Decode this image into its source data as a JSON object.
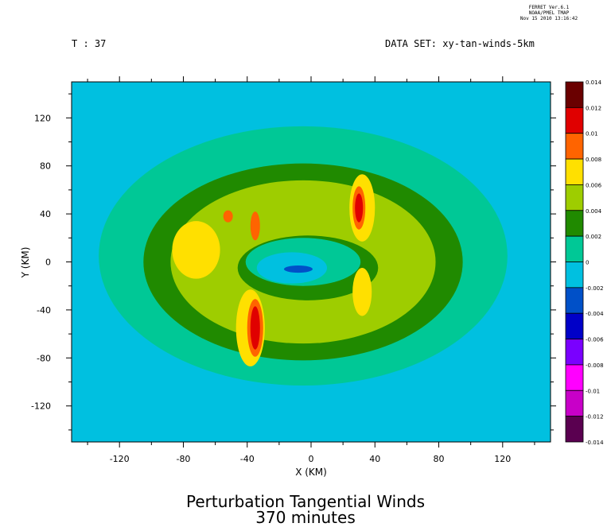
{
  "stamp": {
    "line1": "FERRET Ver.6.1",
    "line2": "NOAA/PMEL TMAP",
    "line3": "Nov 15 2010 13:16:42"
  },
  "header": {
    "time_label": "T : 37",
    "dataset_label": "DATA SET: xy-tan-winds-5km"
  },
  "title": {
    "line1": "Perturbation Tangential Winds",
    "line2": "370 minutes"
  },
  "chart_data": {
    "type": "heatmap",
    "xlabel": "X (KM)",
    "ylabel": "Y (KM)",
    "xlim": [
      -150,
      150
    ],
    "ylim": [
      -150,
      150
    ],
    "xticks": [
      -120,
      -80,
      -40,
      0,
      40,
      80,
      120
    ],
    "yticks": [
      120,
      80,
      40,
      0,
      -40,
      -80,
      -120
    ],
    "xtick_labels": [
      "-120",
      "-80",
      "-40",
      "0",
      "40",
      "80",
      "120"
    ],
    "ytick_labels": [
      "120",
      "80",
      "40",
      "0",
      "-40",
      "-80",
      "-120"
    ],
    "background_level_color": "#00c0e0",
    "colorbar": {
      "levels": [
        0.014,
        0.012,
        0.01,
        0.008,
        0.006,
        0.004,
        0.002,
        0,
        -0.002,
        -0.004,
        -0.006,
        -0.008,
        -0.01,
        -0.012,
        -0.014
      ],
      "labels": [
        "0.014",
        "0.012",
        "0.01",
        "0.008",
        "0.006",
        "0.004",
        "0.002",
        "0",
        "-0.002",
        "-0.004",
        "-0.006",
        "-0.008",
        "-0.01",
        "-0.012",
        "-0.014"
      ],
      "colors": [
        "#6a0000",
        "#e00000",
        "#ff6400",
        "#ffe000",
        "#9ecd00",
        "#208a00",
        "#00c896",
        "#00c0e0",
        "#0050c8",
        "#0000c8",
        "#7a00ff",
        "#ff00ff",
        "#c800c8",
        "#5a0050"
      ]
    },
    "regions": [
      {
        "level_range": [
          0,
          0.002
        ],
        "color": "#00c896",
        "cx": -5,
        "cy": 5,
        "rx": 128,
        "ry": 108
      },
      {
        "level_range": [
          0.002,
          0.004
        ],
        "color": "#208a00",
        "cx": -5,
        "cy": 0,
        "rx": 100,
        "ry": 82
      },
      {
        "level_range": [
          0.004,
          0.006
        ],
        "color": "#9ecd00",
        "cx": -5,
        "cy": 0,
        "rx": 83,
        "ry": 68
      },
      {
        "level_range": [
          0.002,
          0.004
        ],
        "color": "#208a00",
        "cx": -2,
        "cy": -5,
        "rx": 44,
        "ry": 27
      },
      {
        "level_range": [
          0,
          0.002
        ],
        "color": "#00c896",
        "cx": -5,
        "cy": 0,
        "rx": 36,
        "ry": 20
      },
      {
        "level_range": [
          -0.002,
          0
        ],
        "color": "#00c0e0",
        "cx": -12,
        "cy": -5,
        "rx": 22,
        "ry": 13
      },
      {
        "level_range": [
          -0.004,
          -0.002
        ],
        "color": "#0050c8",
        "cx": -8,
        "cy": -6,
        "rx": 9,
        "ry": 3
      },
      {
        "level_range": [
          0.006,
          0.008
        ],
        "color": "#ffe000",
        "cx": -72,
        "cy": 10,
        "rx": 15,
        "ry": 24
      },
      {
        "level_range": [
          0.006,
          0.008
        ],
        "color": "#ffe000",
        "cx": -38,
        "cy": -55,
        "rx": 9,
        "ry": 32
      },
      {
        "level_range": [
          0.006,
          0.008
        ],
        "color": "#ffe000",
        "cx": 32,
        "cy": 45,
        "rx": 8,
        "ry": 28
      },
      {
        "level_range": [
          0.006,
          0.008
        ],
        "color": "#ffe000",
        "cx": 32,
        "cy": -25,
        "rx": 6,
        "ry": 20
      },
      {
        "level_range": [
          0.008,
          0.01
        ],
        "color": "#ff6400",
        "cx": -35,
        "cy": -55,
        "rx": 5,
        "ry": 24
      },
      {
        "level_range": [
          0.008,
          0.01
        ],
        "color": "#ff6400",
        "cx": 30,
        "cy": 45,
        "rx": 4,
        "ry": 18
      },
      {
        "level_range": [
          0.008,
          0.01
        ],
        "color": "#ff6400",
        "cx": -35,
        "cy": 30,
        "rx": 3,
        "ry": 12
      },
      {
        "level_range": [
          0.008,
          0.01
        ],
        "color": "#ff6400",
        "cx": -52,
        "cy": 38,
        "rx": 3,
        "ry": 5
      },
      {
        "level_range": [
          0.01,
          0.012
        ],
        "color": "#e00000",
        "cx": -35,
        "cy": -55,
        "rx": 3,
        "ry": 18
      },
      {
        "level_range": [
          0.01,
          0.012
        ],
        "color": "#e00000",
        "cx": 30,
        "cy": 45,
        "rx": 2.5,
        "ry": 12
      }
    ]
  }
}
